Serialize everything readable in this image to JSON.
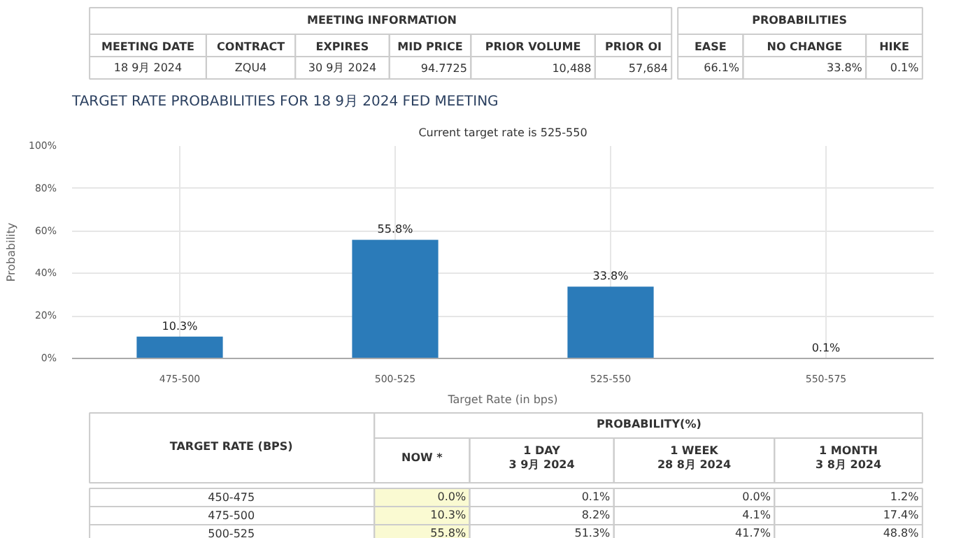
{
  "chart_data": [
    {
      "type": "other",
      "annotations": [
        "MEETING INFORMATION",
        "PROBABILITIES",
        "MEETING DATE",
        "CONTRACT",
        "EXPIRES",
        "MID PRICE",
        "PRIOR VOLUME",
        "PRIOR OI",
        "EASE",
        "NO CHANGE",
        "HIKE",
        "18 9月 2024",
        "ZQU4",
        "30 9月 2024",
        "94.7725",
        "10,488",
        "57,684",
        "66.1%",
        "33.8%",
        "0.1%"
      ]
    },
    {
      "type": "bar",
      "title": "TARGET RATE PROBABILITIES FOR 18 9月 2024 FED MEETING",
      "subtitle": "Current target rate is 525-550",
      "xlabel": "Target Rate (in bps)",
      "ylabel": "Probability",
      "categories": [
        "475-500",
        "500-525",
        "525-550",
        "550-575"
      ],
      "values": [
        10.3,
        55.8,
        33.8,
        0.1
      ],
      "color": "#2b7bb9",
      "value_labels": [
        "10.3%",
        "55.8%",
        "33.8%",
        "0.1%"
      ],
      "ylim": [
        0,
        100
      ],
      "yticks": [
        {
          "value": 0,
          "label": "0%"
        },
        {
          "value": 20,
          "label": "20%"
        },
        {
          "value": 40,
          "label": "40%"
        },
        {
          "value": 60,
          "label": "60%"
        },
        {
          "value": 80,
          "label": "80%"
        },
        {
          "value": 100,
          "label": "100%"
        }
      ],
      "grid": true
    },
    {
      "type": "other",
      "annotations": [
        "TARGET RATE (BPS)",
        "PROBABILITY(%)",
        "NOW *",
        "1 DAY\n3 9月 2024",
        "1 WEEK\n28 8月 2024",
        "1 MONTH\n3 8月 2024",
        "450-475",
        "0.0%",
        "0.1%",
        "0.0%",
        "1.2%",
        "475-500",
        "10.3%",
        "8.2%",
        "4.1%",
        "17.4%",
        "500-525",
        "55.8%",
        "51.3%",
        "41.7%",
        "48.8%"
      ]
    }
  ]
}
